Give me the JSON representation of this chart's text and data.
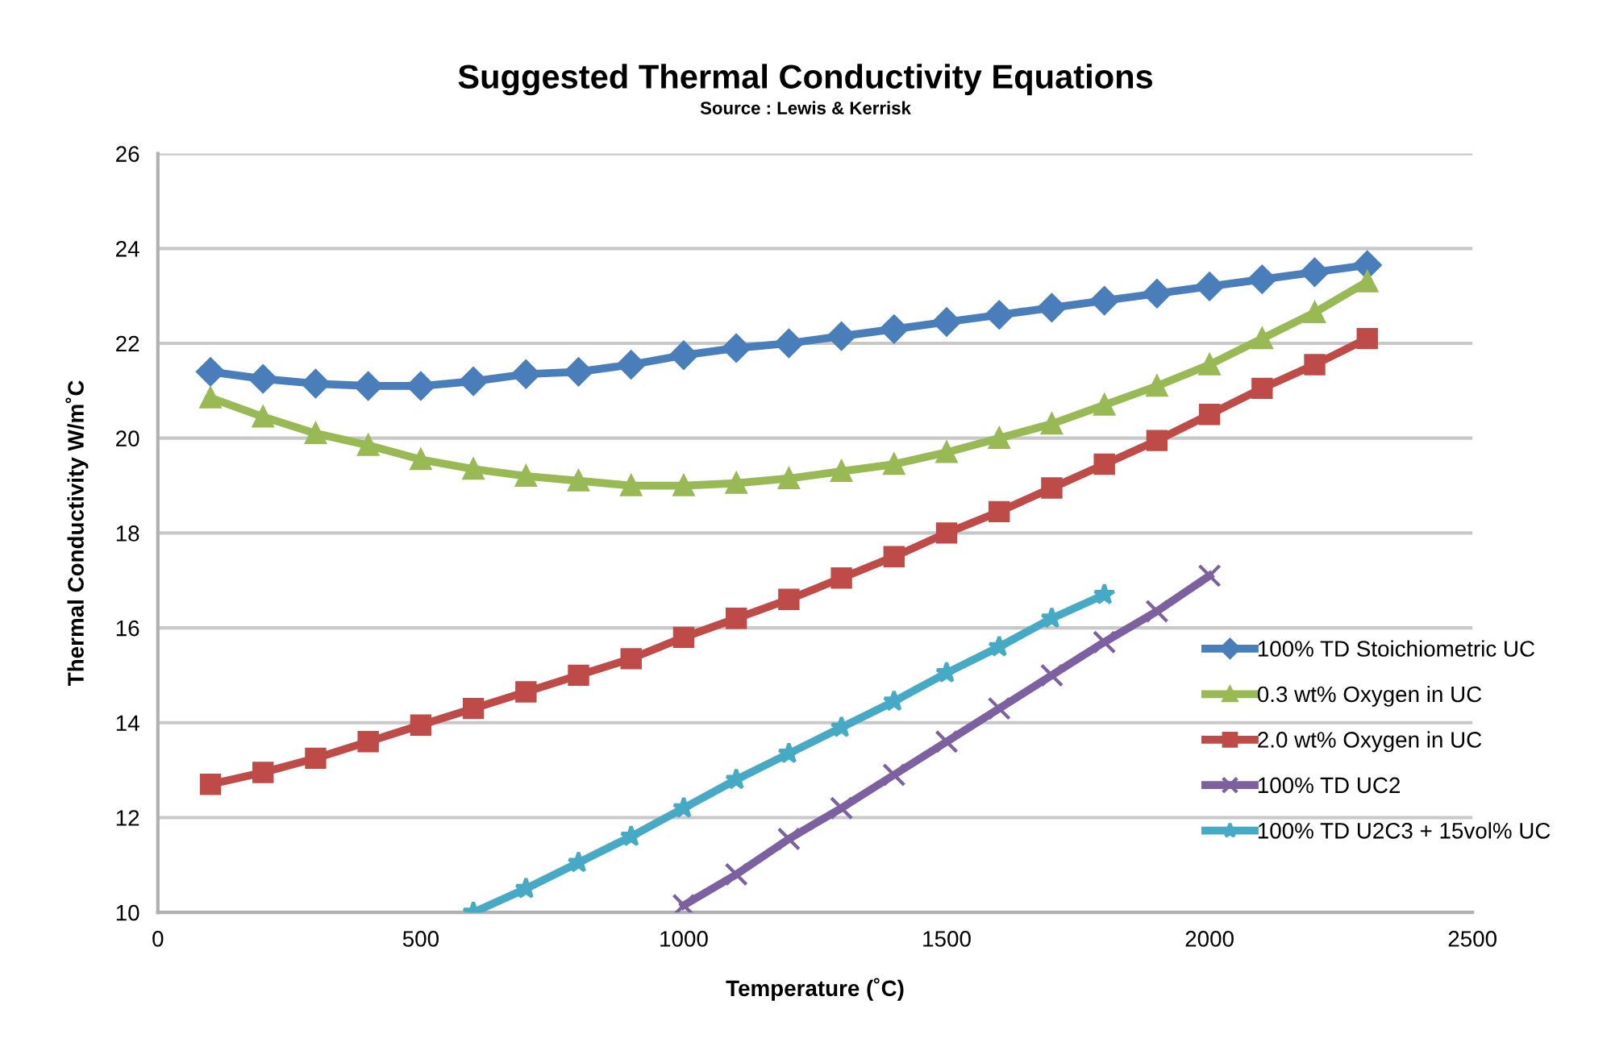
{
  "chart_data": {
    "type": "line",
    "title": "Suggested Thermal Conductivity Equations",
    "subtitle": "Source : Lewis & Kerrisk",
    "xlabel": "Temperature (˚C)",
    "ylabel": "Thermal Conductivity W/m˚C",
    "x": [
      100,
      200,
      300,
      400,
      500,
      600,
      700,
      800,
      900,
      1000,
      1100,
      1200,
      1300,
      1400,
      1500,
      1600,
      1700,
      1800,
      1900,
      2000,
      2100,
      2200,
      2300
    ],
    "series": [
      {
        "name": "100% TD Stoichiometric UC",
        "color": "#4a7ebb",
        "marker": "diamond",
        "values": [
          21.4,
          21.25,
          21.15,
          21.1,
          21.1,
          21.2,
          21.35,
          21.4,
          21.55,
          21.75,
          21.9,
          22.0,
          22.15,
          22.3,
          22.45,
          22.6,
          22.75,
          22.9,
          23.05,
          23.2,
          23.35,
          23.5,
          23.65
        ]
      },
      {
        "name": "0.3 wt% Oxygen in UC",
        "color": "#98b954",
        "marker": "triangle",
        "values": [
          20.85,
          20.45,
          20.1,
          19.85,
          19.55,
          19.35,
          19.2,
          19.1,
          19.0,
          19.0,
          19.05,
          19.15,
          19.3,
          19.45,
          19.7,
          20.0,
          20.3,
          20.7,
          21.1,
          21.55,
          22.1,
          22.65,
          23.3
        ]
      },
      {
        "name": "2.0 wt% Oxygen in UC",
        "color": "#be4b48",
        "marker": "square",
        "values": [
          12.7,
          12.95,
          13.25,
          13.6,
          13.95,
          14.3,
          14.65,
          15.0,
          15.35,
          15.8,
          16.2,
          16.6,
          17.05,
          17.5,
          18.0,
          18.45,
          18.95,
          19.45,
          19.95,
          20.5,
          21.05,
          21.55,
          22.1
        ]
      },
      {
        "name": "100% TD UC2",
        "color": "#7d60a0",
        "marker": "cross",
        "x": [
          1000,
          1100,
          1200,
          1300,
          1400,
          1500,
          1600,
          1700,
          1800,
          1900,
          2000
        ],
        "values": [
          10.15,
          10.8,
          11.55,
          12.2,
          12.9,
          13.6,
          14.3,
          15.0,
          15.7,
          16.35,
          17.1
        ]
      },
      {
        "name": "100% TD U2C3 + 15vol% UC",
        "color": "#46aac5",
        "marker": "star",
        "x": [
          600,
          700,
          800,
          900,
          1000,
          1100,
          1200,
          1300,
          1400,
          1500,
          1600,
          1700,
          1800
        ],
        "values": [
          10.0,
          10.5,
          11.05,
          11.6,
          12.2,
          12.8,
          13.35,
          13.9,
          14.45,
          15.05,
          15.6,
          16.2,
          16.7
        ]
      }
    ],
    "xlim": [
      0,
      2500
    ],
    "xticks": [
      0,
      500,
      1000,
      1500,
      2000,
      2500
    ],
    "ylim": [
      10,
      26
    ],
    "yticks": [
      10,
      12,
      14,
      16,
      18,
      20,
      22,
      24,
      26
    ],
    "grid": "y",
    "legend": "right",
    "line_style": "solid"
  }
}
